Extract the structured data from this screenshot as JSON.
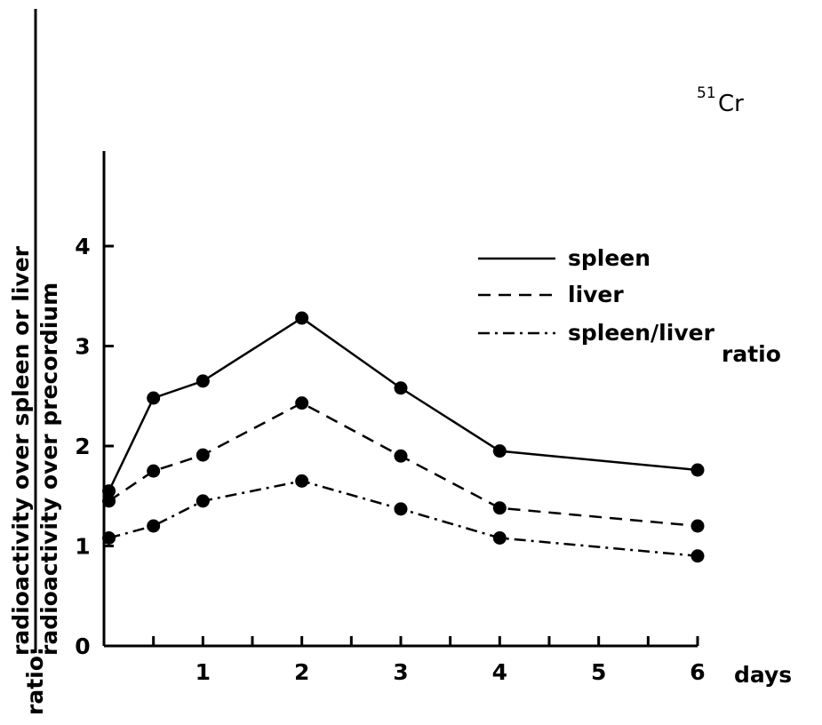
{
  "chart_data": {
    "type": "line",
    "annotation": {
      "superscript": "51",
      "text": "Cr"
    },
    "ylabel": {
      "prefix": "ratio:",
      "numerator": "radioactivity over spleen or liver",
      "denominator": "radioactivity over precordium"
    },
    "xlabel": "days",
    "xlim": [
      0,
      6
    ],
    "ylim": [
      0,
      5
    ],
    "x_minor_ticks": [
      0.5,
      1,
      1.5,
      2,
      2.5,
      3,
      3.5,
      4,
      4.5,
      5,
      5.5,
      6
    ],
    "x_tick_labels": [
      {
        "value": 1,
        "label": "1"
      },
      {
        "value": 2,
        "label": "2"
      },
      {
        "value": 3,
        "label": "3"
      },
      {
        "value": 4,
        "label": "4"
      },
      {
        "value": 5,
        "label": "5"
      },
      {
        "value": 6,
        "label": "6"
      }
    ],
    "y_tick_labels": [
      {
        "value": 0,
        "label": "0"
      },
      {
        "value": 1,
        "label": "1"
      },
      {
        "value": 2,
        "label": "2"
      },
      {
        "value": 3,
        "label": "3"
      },
      {
        "value": 4,
        "label": "4"
      }
    ],
    "grid": false,
    "legend_position": "right",
    "series": [
      {
        "name": "spleen",
        "line_style": "solid",
        "x": [
          0.05,
          0.5,
          1,
          2,
          3,
          4,
          6
        ],
        "y": [
          1.55,
          2.48,
          2.65,
          3.28,
          2.58,
          1.95,
          1.76
        ]
      },
      {
        "name": "liver",
        "line_style": "dashed",
        "x": [
          0.05,
          0.5,
          1,
          2,
          3,
          4,
          6
        ],
        "y": [
          1.45,
          1.75,
          1.91,
          2.43,
          1.9,
          1.38,
          1.2
        ]
      },
      {
        "name": "spleen/liver",
        "name_line2": "ratio",
        "line_style": "dashdot",
        "x": [
          0.05,
          0.5,
          1,
          2,
          3,
          4,
          6
        ],
        "y": [
          1.08,
          1.2,
          1.45,
          1.65,
          1.37,
          1.08,
          0.9
        ]
      }
    ]
  }
}
